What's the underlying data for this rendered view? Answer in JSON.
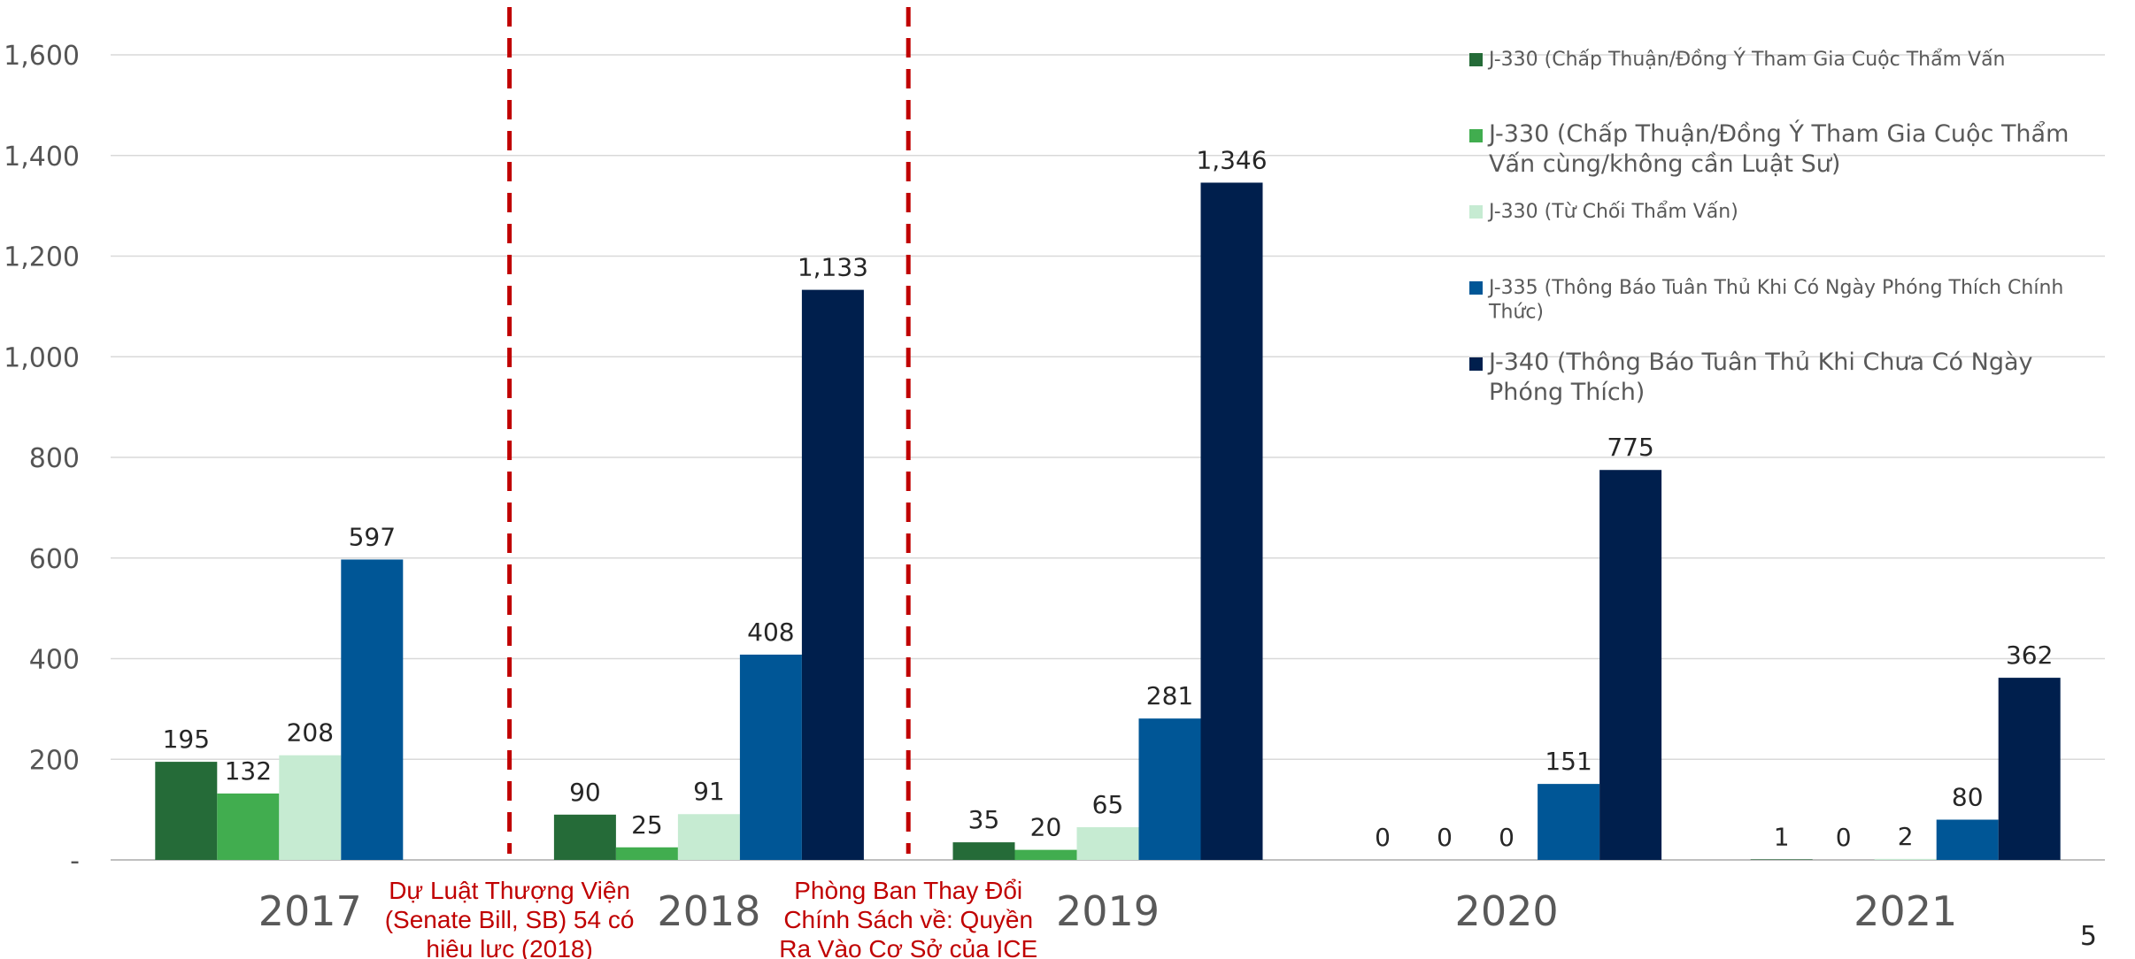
{
  "chart_data": {
    "type": "bar",
    "categories": [
      "2017",
      "2018",
      "2019",
      "2020",
      "2021"
    ],
    "series": [
      {
        "name": "J-330 (Chấp Thuận/Đồng Ý Tham Gia Cuộc Thẩm Vấn",
        "color": "#256b38",
        "values": [
          195,
          90,
          35,
          0,
          1
        ],
        "labels": [
          "195",
          "90",
          "35",
          "0",
          "1"
        ]
      },
      {
        "name": "J-330 (Chấp Thuận/Đồng Ý Tham Gia Cuộc Thẩm Vấn cùng/không cần Luật Sư)",
        "color": "#41ad4f",
        "values": [
          132,
          25,
          20,
          0,
          0
        ],
        "labels": [
          "132",
          "25",
          "20",
          "0",
          "0"
        ]
      },
      {
        "name": "J-330 (Từ Chối Thẩm Vấn)",
        "color": "#c6ebd2",
        "values": [
          208,
          91,
          65,
          0,
          2
        ],
        "labels": [
          "208",
          "91",
          "65",
          "0",
          "2"
        ]
      },
      {
        "name": "J-335 (Thông Báo Tuân Thủ Khi Có Ngày Phóng Thích Chính Thức)",
        "color": "#005696",
        "values": [
          597,
          408,
          281,
          151,
          80
        ],
        "labels": [
          "597",
          "408",
          "281",
          "151",
          "80"
        ]
      },
      {
        "name": "J-340 (Thông Báo Tuân Thủ Khi Chưa Có Ngày Phóng Thích)",
        "color": "#001f4d",
        "values": [
          null,
          1133,
          1346,
          775,
          362
        ],
        "labels": [
          null,
          "1,133",
          "1,346",
          "775",
          "362"
        ]
      }
    ],
    "ylim": [
      0,
      1600
    ],
    "yticks": [
      "-",
      "200",
      "400",
      "600",
      "800",
      "1,000",
      "1,200",
      "1,400",
      "1,600"
    ],
    "ytick_values": [
      0,
      200,
      400,
      600,
      800,
      1000,
      1200,
      1400,
      1600
    ],
    "grid": true,
    "legend_position": "top-right",
    "annotations": [
      {
        "after_category": "2017",
        "text": [
          "Dự Luật Thượng Viện",
          "(Senate Bill, SB) 54 có",
          "hiệu lực (2018)"
        ]
      },
      {
        "after_category": "2018",
        "text": [
          "Phòng Ban Thay Đổi",
          "Chính Sách về: Quyền",
          "Ra Vào Cơ Sở của ICE"
        ]
      }
    ],
    "xlabel": "",
    "ylabel": ""
  },
  "page_number": "5",
  "colors": {
    "annotation": "#c00000",
    "grid": "#d9d9d9"
  }
}
